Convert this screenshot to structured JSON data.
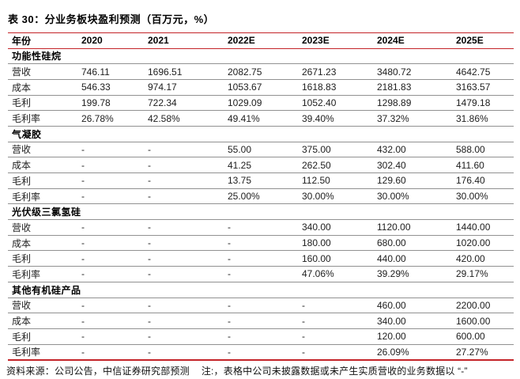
{
  "title": "表 30：分业务板块盈利预测（百万元，%）",
  "table": {
    "columns": [
      "年份",
      "2020",
      "2021",
      "2022E",
      "2023E",
      "2024E",
      "2025E"
    ],
    "sections": [
      {
        "name": "功能性硅烷",
        "rows": [
          {
            "label": "营收",
            "values": [
              "746.11",
              "1696.51",
              "2082.75",
              "2671.23",
              "3480.72",
              "4642.75"
            ]
          },
          {
            "label": "成本",
            "values": [
              "546.33",
              "974.17",
              "1053.67",
              "1618.83",
              "2181.83",
              "3163.57"
            ]
          },
          {
            "label": "毛利",
            "values": [
              "199.78",
              "722.34",
              "1029.09",
              "1052.40",
              "1298.89",
              "1479.18"
            ]
          },
          {
            "label": "毛利率",
            "values": [
              "26.78%",
              "42.58%",
              "49.41%",
              "39.40%",
              "37.32%",
              "31.86%"
            ]
          }
        ]
      },
      {
        "name": "气凝胶",
        "rows": [
          {
            "label": "营收",
            "values": [
              "-",
              "-",
              "55.00",
              "375.00",
              "432.00",
              "588.00"
            ]
          },
          {
            "label": "成本",
            "values": [
              "-",
              "-",
              "41.25",
              "262.50",
              "302.40",
              "411.60"
            ]
          },
          {
            "label": "毛利",
            "values": [
              "-",
              "-",
              "13.75",
              "112.50",
              "129.60",
              "176.40"
            ]
          },
          {
            "label": "毛利率",
            "values": [
              "-",
              "-",
              "25.00%",
              "30.00%",
              "30.00%",
              "30.00%"
            ]
          }
        ]
      },
      {
        "name": "光伏级三氯氢硅",
        "rows": [
          {
            "label": "营收",
            "values": [
              "-",
              "-",
              "-",
              "340.00",
              "1120.00",
              "1440.00"
            ]
          },
          {
            "label": "成本",
            "values": [
              "-",
              "-",
              "-",
              "180.00",
              "680.00",
              "1020.00"
            ]
          },
          {
            "label": "毛利",
            "values": [
              "-",
              "-",
              "-",
              "160.00",
              "440.00",
              "420.00"
            ]
          },
          {
            "label": "毛利率",
            "values": [
              "-",
              "-",
              "-",
              "47.06%",
              "39.29%",
              "29.17%"
            ]
          }
        ]
      },
      {
        "name": "其他有机硅产品",
        "rows": [
          {
            "label": "营收",
            "values": [
              "-",
              "-",
              "-",
              "-",
              "460.00",
              "2200.00"
            ]
          },
          {
            "label": "成本",
            "values": [
              "-",
              "-",
              "-",
              "-",
              "340.00",
              "1600.00"
            ]
          },
          {
            "label": "毛利",
            "values": [
              "-",
              "-",
              "-",
              "-",
              "120.00",
              "600.00"
            ]
          },
          {
            "label": "毛利率",
            "values": [
              "-",
              "-",
              "-",
              "-",
              "26.09%",
              "27.27%"
            ]
          }
        ]
      }
    ]
  },
  "footer": {
    "source": "资料来源：公司公告，中信证券研究部预测",
    "note": "注:，表格中公司未披露数据或未产生实质营收的业务数据以 “-”"
  },
  "colors": {
    "accent_red": "#c42428",
    "separator_gray": "#919191",
    "text": "#1d1d1d"
  }
}
